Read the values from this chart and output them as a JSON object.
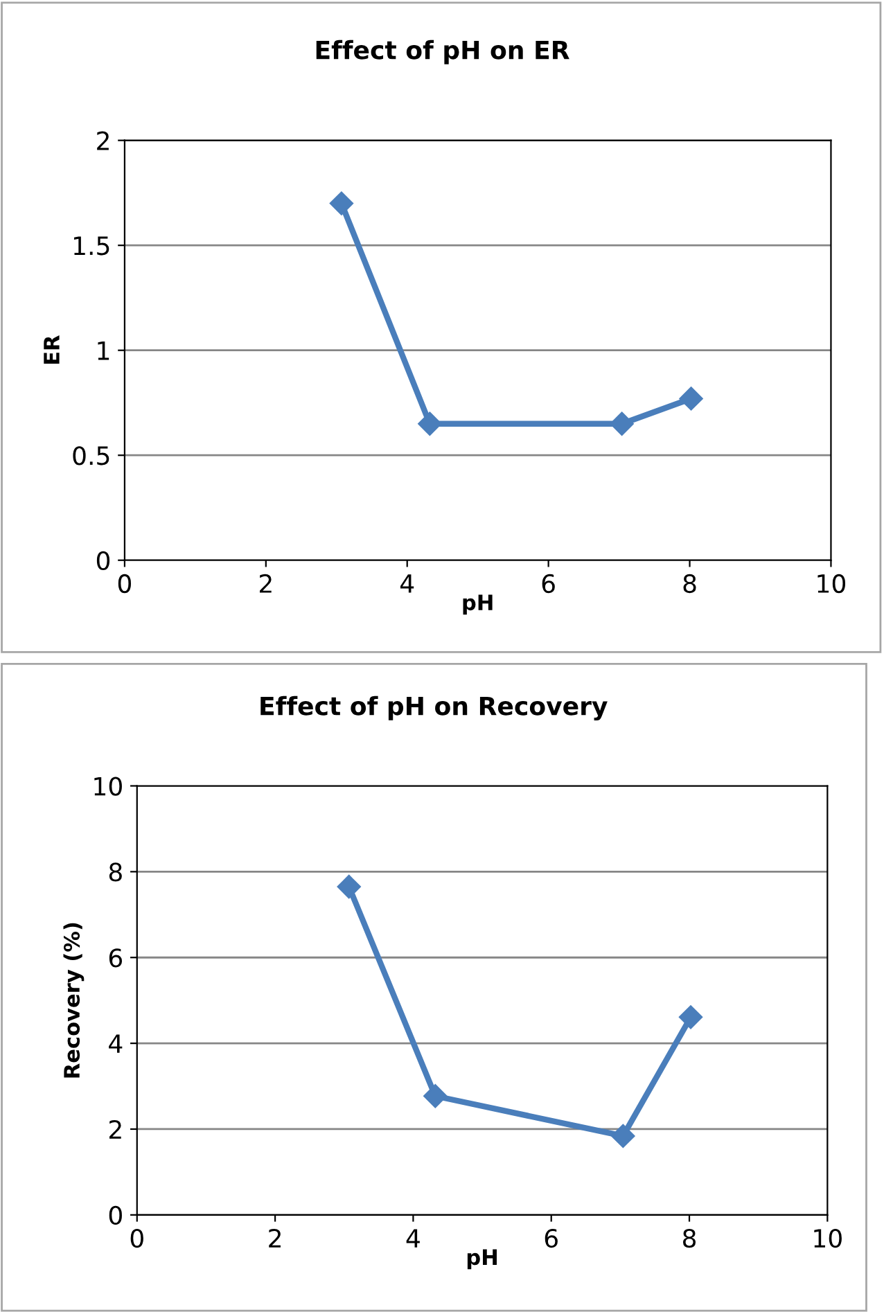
{
  "chart_data": [
    {
      "type": "line",
      "title": "Effect of pH on ER",
      "xlabel": "pH",
      "ylabel": "ER",
      "x": [
        3.07,
        4.32,
        7.04,
        8.02
      ],
      "series": [
        {
          "color": "#4a7ebb",
          "values": [
            1.7,
            0.65,
            0.65,
            0.77
          ]
        }
      ],
      "xlim": [
        0,
        10
      ],
      "xticks": [
        0,
        2,
        4,
        6,
        8,
        10
      ],
      "ylim": [
        0,
        2
      ],
      "yticks": [
        0,
        0.5,
        1,
        1.5,
        2
      ],
      "grid": "y",
      "marker": "diamond",
      "line_style": "solid",
      "legend": false
    },
    {
      "type": "line",
      "title": "Effect of pH on Recovery",
      "xlabel": "pH",
      "ylabel": "Recovery (%)",
      "x": [
        3.07,
        4.32,
        7.04,
        8.02
      ],
      "series": [
        {
          "color": "#4a7ebb",
          "values": [
            7.65,
            2.77,
            1.84,
            4.61
          ]
        }
      ],
      "xlim": [
        0,
        10
      ],
      "xticks": [
        0,
        2,
        4,
        6,
        8,
        10
      ],
      "ylim": [
        0,
        10
      ],
      "yticks": [
        0,
        2,
        4,
        6,
        8,
        10
      ],
      "grid": "y",
      "marker": "diamond",
      "line_style": "solid",
      "legend": false
    }
  ]
}
